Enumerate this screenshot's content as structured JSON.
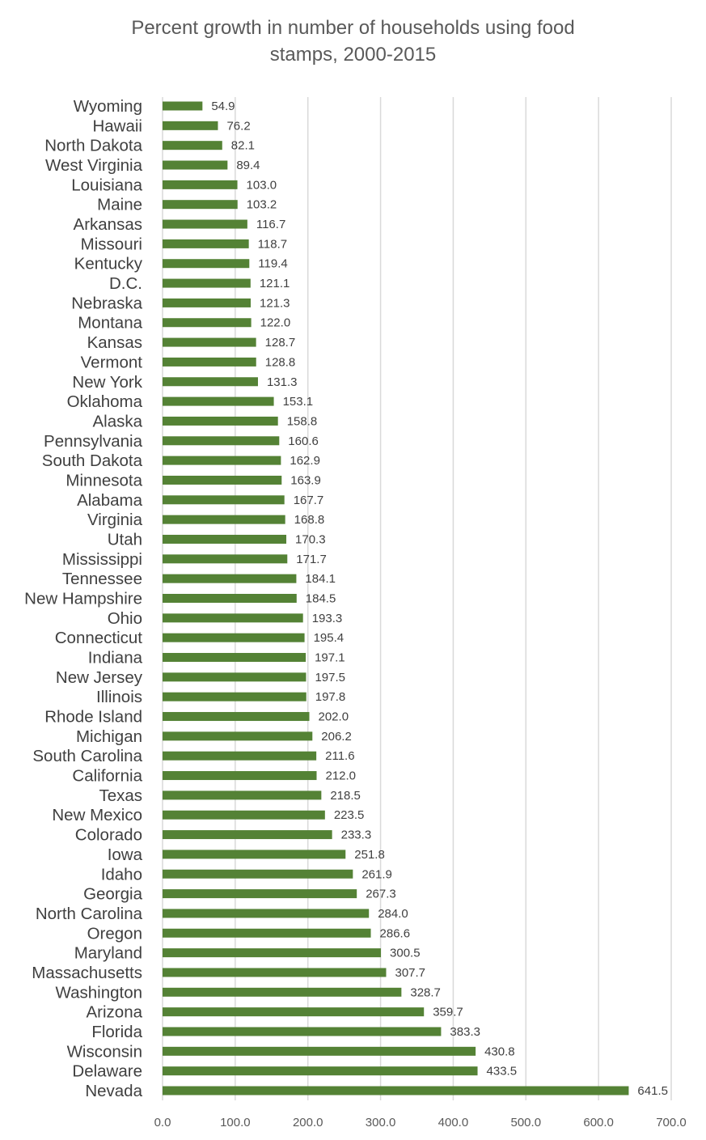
{
  "chart_data": {
    "type": "bar",
    "orientation": "horizontal",
    "title": "Percent growth in number of households using food stamps, 2000-2015",
    "title_lines": [
      "Percent growth in number of households using food",
      "stamps, 2000-2015"
    ],
    "xlabel": "",
    "ylabel": "",
    "xlim": [
      0,
      700
    ],
    "ticks": [
      "0.0",
      "100.0",
      "200.0",
      "300.0",
      "400.0",
      "500.0",
      "600.0",
      "700.0"
    ],
    "tick_values": [
      0,
      100,
      200,
      300,
      400,
      500,
      600,
      700
    ],
    "grid": true,
    "legend": "none",
    "bar_color": "#548235",
    "categories": [
      "Wyoming",
      "Hawaii",
      "North Dakota",
      "West Virginia",
      "Louisiana",
      "Maine",
      "Arkansas",
      "Missouri",
      "Kentucky",
      "D.C.",
      "Nebraska",
      "Montana",
      "Kansas",
      "Vermont",
      "New York",
      "Oklahoma",
      "Alaska",
      "Pennsylvania",
      "South Dakota",
      "Minnesota",
      "Alabama",
      "Virginia",
      "Utah",
      "Mississippi",
      "Tennessee",
      "New Hampshire",
      "Ohio",
      "Connecticut",
      "Indiana",
      "New Jersey",
      "Illinois",
      "Rhode Island",
      "Michigan",
      "South Carolina",
      "California",
      "Texas",
      "New Mexico",
      "Colorado",
      "Iowa",
      "Idaho",
      "Georgia",
      "North Carolina",
      "Oregon",
      "Maryland",
      "Massachusetts",
      "Washington",
      "Arizona",
      "Florida",
      "Wisconsin",
      "Delaware",
      "Nevada"
    ],
    "values": [
      54.9,
      76.2,
      82.1,
      89.4,
      103.0,
      103.2,
      116.7,
      118.7,
      119.4,
      121.1,
      121.3,
      122.0,
      128.7,
      128.8,
      131.3,
      153.1,
      158.8,
      160.6,
      162.9,
      163.9,
      167.7,
      168.8,
      170.3,
      171.7,
      184.1,
      184.5,
      193.3,
      195.4,
      197.1,
      197.5,
      197.8,
      202.0,
      206.2,
      211.6,
      212.0,
      218.5,
      223.5,
      233.3,
      251.8,
      261.9,
      267.3,
      284.0,
      286.6,
      300.5,
      307.7,
      328.7,
      359.7,
      383.3,
      430.8,
      433.5,
      641.5
    ],
    "value_labels": [
      "54.9",
      "76.2",
      "82.1",
      "89.4",
      "103.0",
      "103.2",
      "116.7",
      "118.7",
      "119.4",
      "121.1",
      "121.3",
      "122.0",
      "128.7",
      "128.8",
      "131.3",
      "153.1",
      "158.8",
      "160.6",
      "162.9",
      "163.9",
      "167.7",
      "168.8",
      "170.3",
      "171.7",
      "184.1",
      "184.5",
      "193.3",
      "195.4",
      "197.1",
      "197.5",
      "197.8",
      "202.0",
      "206.2",
      "211.6",
      "212.0",
      "218.5",
      "223.5",
      "233.3",
      "251.8",
      "261.9",
      "267.3",
      "284.0",
      "286.6",
      "300.5",
      "307.7",
      "328.7",
      "359.7",
      "383.3",
      "430.8",
      "433.5",
      "641.5"
    ]
  }
}
